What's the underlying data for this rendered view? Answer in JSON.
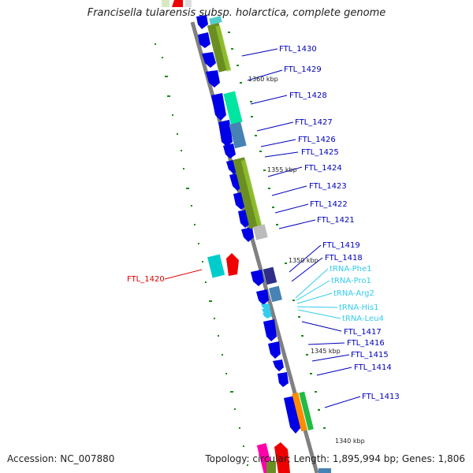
{
  "title": "Francisella tularensis subsp. holarctica, complete genome",
  "footer": {
    "accession": "Accession: NC_007880",
    "summary": "Topology: circular; Length: 1,895,994 bp; Genes: 1,806"
  },
  "colors": {
    "cds": "#0000e6",
    "cds_label": "#0000bb",
    "trna": "#33ccee",
    "highlight": "#dd0000",
    "backbone": "#808080",
    "tick": "#1a8a1a"
  },
  "ticks": [
    "1360 kbp",
    "1355 kbp",
    "1350 kbp",
    "1345 kbp",
    "1340 kbp"
  ],
  "genes": {
    "ftl_1430": "FTL_1430",
    "ftl_1429": "FTL_1429",
    "ftl_1428": "FTL_1428",
    "ftl_1427": "FTL_1427",
    "ftl_1426": "FTL_1426",
    "ftl_1425": "FTL_1425",
    "ftl_1424": "FTL_1424",
    "ftl_1423": "FTL_1423",
    "ftl_1422": "FTL_1422",
    "ftl_1421": "FTL_1421",
    "ftl_1420": "FTL_1420",
    "ftl_1419": "FTL_1419",
    "ftl_1418": "FTL_1418",
    "trna_phe1": "tRNA-Phe1",
    "trna_pro1": "tRNA-Pro1",
    "trna_arg2": "tRNA-Arg2",
    "trna_his1": "tRNA-His1",
    "trna_leu4": "tRNA-Leu4",
    "ftl_1417": "FTL_1417",
    "ftl_1416": "FTL_1416",
    "ftl_1415": "FTL_1415",
    "ftl_1414": "FTL_1414",
    "ftl_1413": "FTL_1413"
  }
}
